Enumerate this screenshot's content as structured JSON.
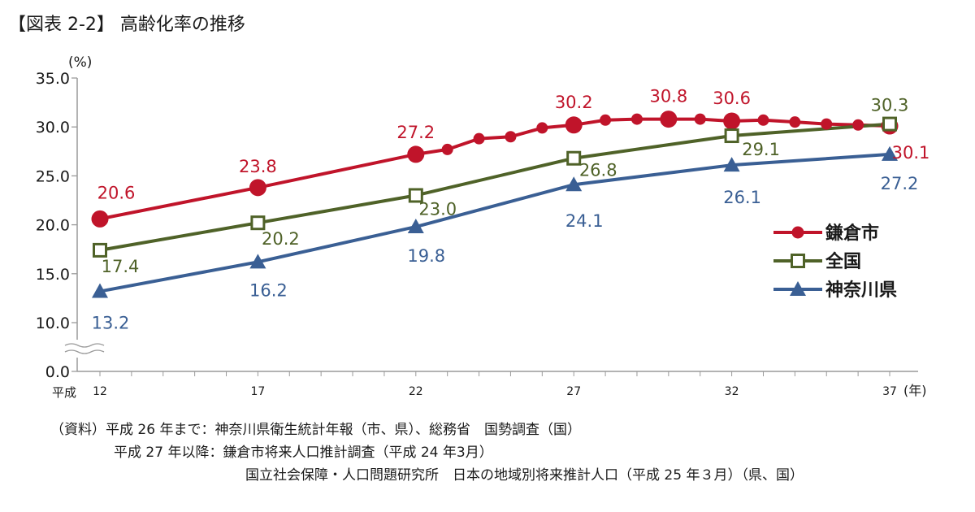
{
  "figure_title": "【図表 2-2】 高齢化率の推移",
  "chart_data": {
    "type": "line",
    "title": "【図表 2-2】 高齢化率の推移",
    "ylabel": "(%)",
    "xunit": "(年)",
    "era_label": "平成",
    "ylim": [
      0,
      35
    ],
    "axis_break": [
      0,
      10
    ],
    "y_ticks": [
      "0.0",
      "10.0",
      "15.0",
      "20.0",
      "25.0",
      "30.0",
      "35.0"
    ],
    "x_ticks": [
      "12",
      "17",
      "22",
      "27",
      "32",
      "37"
    ],
    "grid": false,
    "legend_position": "right",
    "series": [
      {
        "name": "鎌倉市",
        "color": "#c0142a",
        "marker": "circle",
        "points": [
          {
            "x": 12,
            "y": 20.6,
            "label": "20.6",
            "big": true
          },
          {
            "x": 17,
            "y": 23.8,
            "label": "23.8",
            "big": true
          },
          {
            "x": 22,
            "y": 27.2,
            "label": "27.2",
            "big": true
          },
          {
            "x": 23,
            "y": 27.7
          },
          {
            "x": 24,
            "y": 28.8
          },
          {
            "x": 25,
            "y": 29.0
          },
          {
            "x": 26,
            "y": 29.9
          },
          {
            "x": 27,
            "y": 30.2,
            "label": "30.2",
            "big": true
          },
          {
            "x": 28,
            "y": 30.7
          },
          {
            "x": 29,
            "y": 30.8
          },
          {
            "x": 30,
            "y": 30.8,
            "label": "30.8",
            "big": true
          },
          {
            "x": 31,
            "y": 30.8
          },
          {
            "x": 32,
            "y": 30.6,
            "label": "30.6",
            "big": true
          },
          {
            "x": 33,
            "y": 30.7
          },
          {
            "x": 34,
            "y": 30.5
          },
          {
            "x": 35,
            "y": 30.3
          },
          {
            "x": 36,
            "y": 30.2
          },
          {
            "x": 37,
            "y": 30.1,
            "label": "30.1",
            "big": true
          }
        ]
      },
      {
        "name": "全国",
        "color": "#4f6228",
        "marker": "square",
        "points": [
          {
            "x": 12,
            "y": 17.4,
            "label": "17.4"
          },
          {
            "x": 17,
            "y": 20.2,
            "label": "20.2"
          },
          {
            "x": 22,
            "y": 23.0,
            "label": "23.0"
          },
          {
            "x": 27,
            "y": 26.8,
            "label": "26.8"
          },
          {
            "x": 32,
            "y": 29.1,
            "label": "29.1"
          },
          {
            "x": 37,
            "y": 30.3,
            "label": "30.3"
          }
        ]
      },
      {
        "name": "神奈川県",
        "color": "#3a5f94",
        "marker": "triangle",
        "points": [
          {
            "x": 12,
            "y": 13.2,
            "label": "13.2"
          },
          {
            "x": 17,
            "y": 16.2,
            "label": "16.2"
          },
          {
            "x": 22,
            "y": 19.8,
            "label": "19.8"
          },
          {
            "x": 27,
            "y": 24.1,
            "label": "24.1"
          },
          {
            "x": 32,
            "y": 26.1,
            "label": "26.1"
          },
          {
            "x": 37,
            "y": 27.2,
            "label": "27.2"
          }
        ]
      }
    ]
  },
  "sources": [
    "（資料）平成 26 年まで：神奈川県衛生統計年報（市、県）、総務省　国勢調査（国）",
    "平成 27 年以降：鎌倉市将来人口推計調査（平成 24 年3月）",
    "国立社会保障・人口問題研究所　日本の地域別将来推計人口（平成 25 年３月）（県、国）"
  ]
}
